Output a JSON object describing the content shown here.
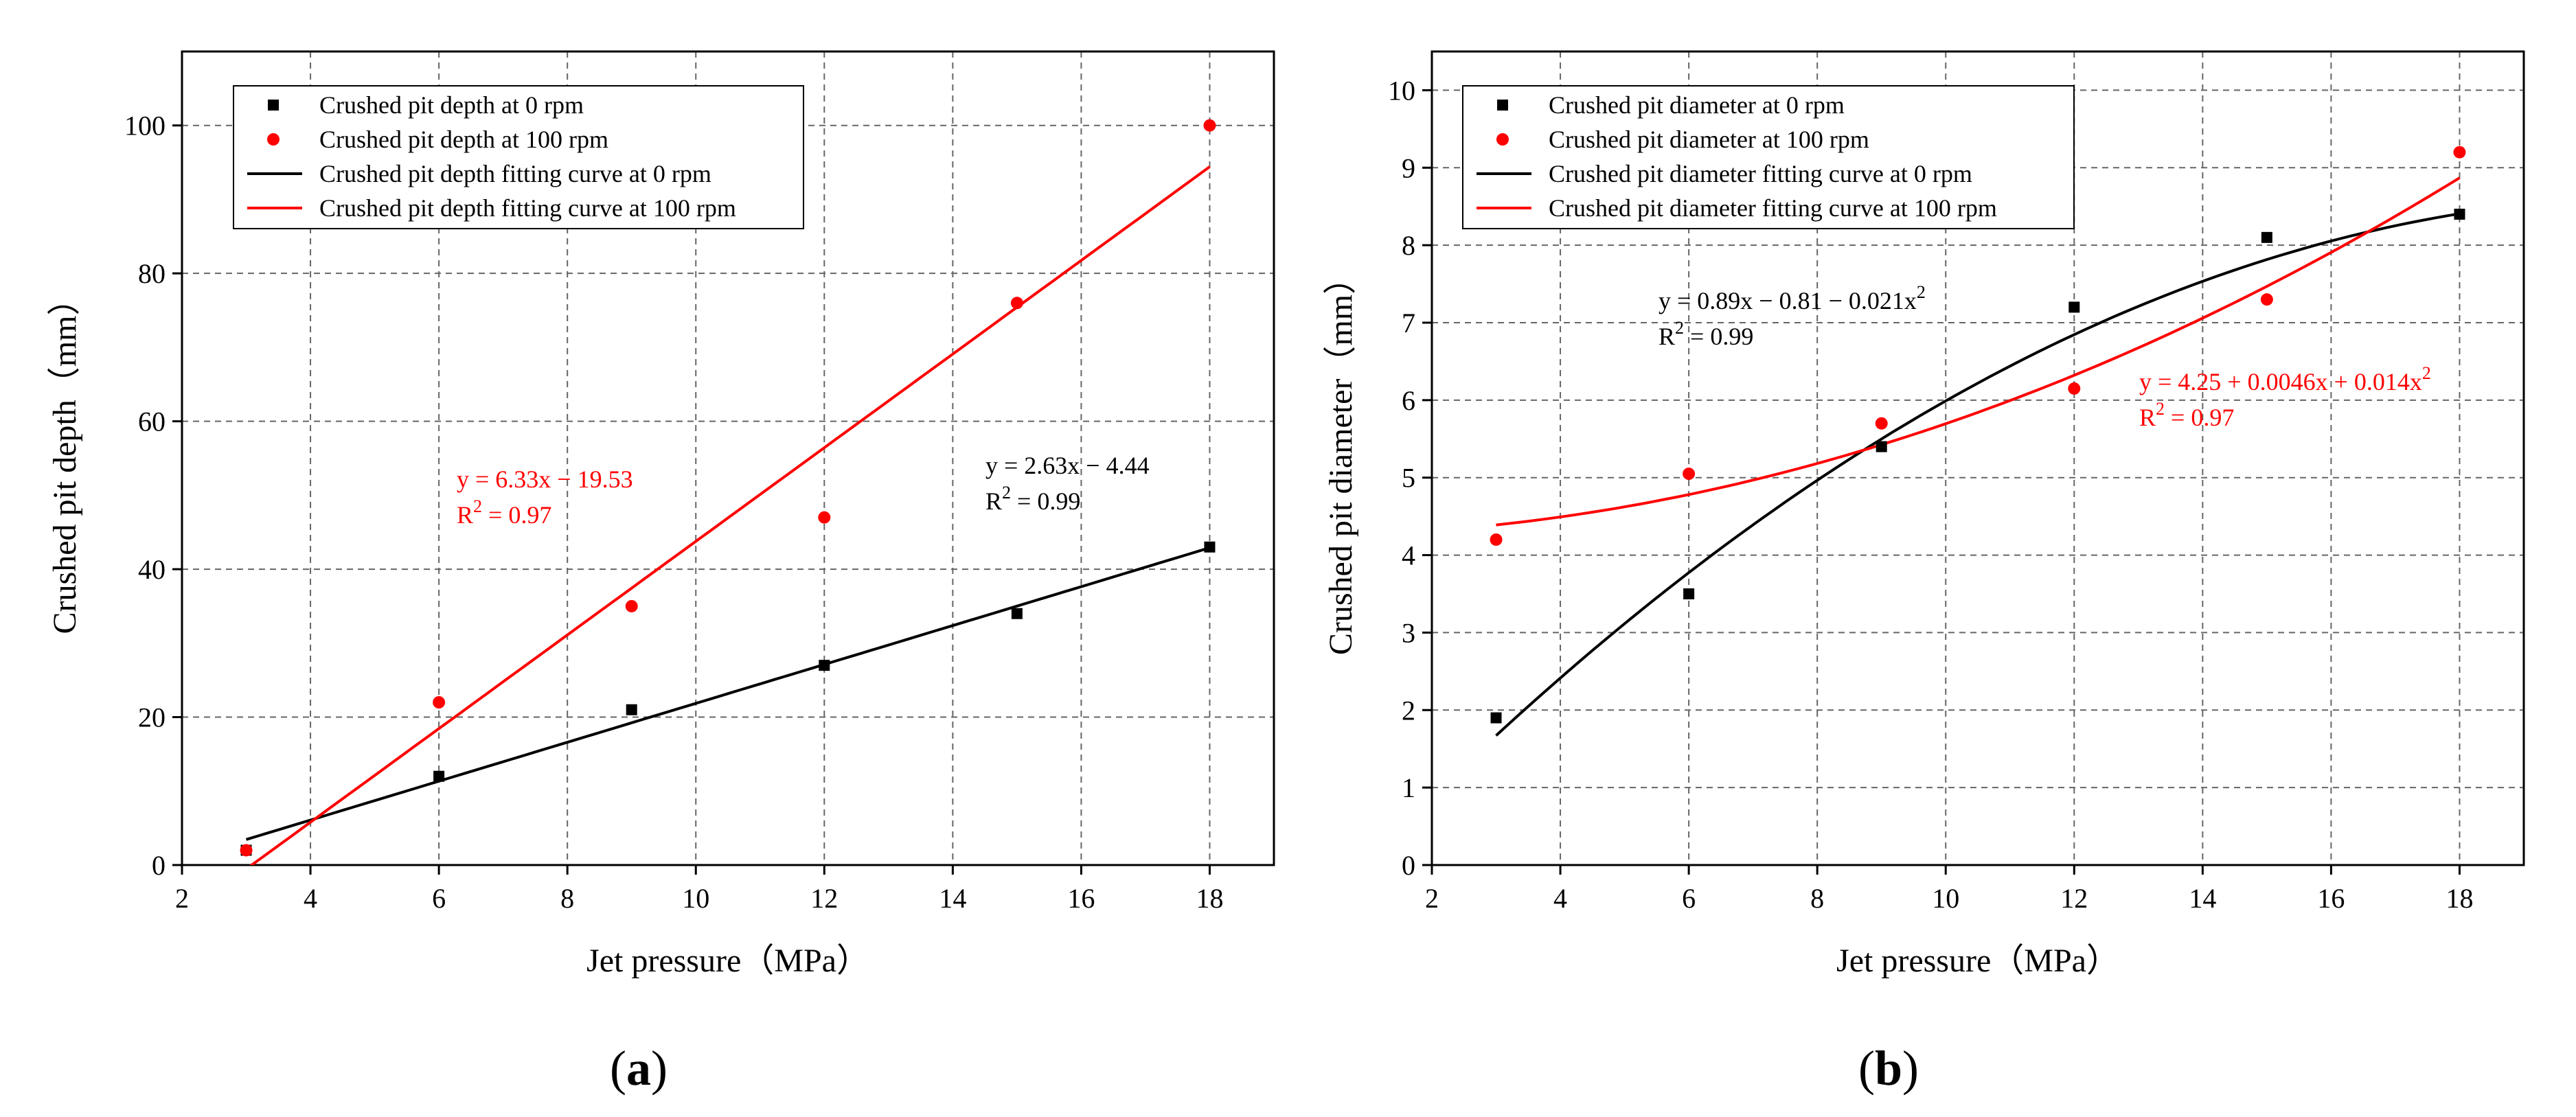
{
  "colors": {
    "black_series": "#000000",
    "red_series": "#ff0000",
    "grid": "#666666"
  },
  "chart_data": [
    {
      "type": "scatter",
      "panel_label": "a",
      "xlabel": "Jet pressure（MPa）",
      "ylabel": "Crushed pit depth（mm）",
      "xlim": [
        2,
        19
      ],
      "ylim": [
        0,
        110
      ],
      "xticks": [
        2,
        4,
        6,
        8,
        10,
        12,
        14,
        16,
        18
      ],
      "yticks": [
        0,
        20,
        40,
        60,
        80,
        100
      ],
      "grid": true,
      "legend_position": "top-left",
      "series": [
        {
          "name": "Crushed pit depth at 0 rpm",
          "marker": "square",
          "color": "#000000",
          "x": [
            3,
            6,
            9,
            12,
            15,
            18
          ],
          "y": [
            2,
            12,
            21,
            27,
            34,
            43
          ]
        },
        {
          "name": "Crushed pit depth at 100 rpm",
          "marker": "circle",
          "color": "#ff0000",
          "x": [
            3,
            6,
            9,
            12,
            15,
            18
          ],
          "y": [
            2,
            22,
            35,
            47,
            76,
            100
          ]
        }
      ],
      "fits": [
        {
          "name": "Crushed pit depth fitting curve at 0 rpm",
          "color": "#000000",
          "model": "linear",
          "coefficients": {
            "a": 2.63,
            "b": -4.44
          },
          "range": [
            3,
            18
          ]
        },
        {
          "name": "Crushed pit depth fitting curve at 100 rpm",
          "color": "#ff0000",
          "model": "linear",
          "coefficients": {
            "a": 6.33,
            "b": -19.53
          },
          "range": [
            3,
            18
          ]
        }
      ],
      "annotations": [
        {
          "color": "#ff0000",
          "equation": "y = 6.33x − 19.53",
          "r2_prefix": "R",
          "r2_sup": "2",
          "r2_value": " = 0.97"
        },
        {
          "color": "#000000",
          "equation": "y = 2.63x − 4.44",
          "r2_prefix": "R",
          "r2_sup": "2",
          "r2_value": " = 0.99"
        }
      ]
    },
    {
      "type": "scatter",
      "panel_label": "b",
      "xlabel": "Jet pressure（MPa）",
      "ylabel": "Crushed pit diameter（mm）",
      "xlim": [
        2,
        19
      ],
      "ylim": [
        0,
        10.5
      ],
      "xticks": [
        2,
        4,
        6,
        8,
        10,
        12,
        14,
        16,
        18
      ],
      "yticks": [
        0,
        1,
        2,
        3,
        4,
        5,
        6,
        7,
        8,
        9,
        10
      ],
      "grid": true,
      "legend_position": "top-left",
      "series": [
        {
          "name": "Crushed pit diameter at 0 rpm",
          "marker": "square",
          "color": "#000000",
          "x": [
            3,
            6,
            9,
            12,
            15,
            18
          ],
          "y": [
            1.9,
            3.5,
            5.4,
            7.2,
            8.1,
            8.4
          ]
        },
        {
          "name": "Crushed pit diameter at 100 rpm",
          "marker": "circle",
          "color": "#ff0000",
          "x": [
            3,
            6,
            9,
            12,
            15,
            18
          ],
          "y": [
            4.2,
            5.05,
            5.7,
            6.15,
            7.3,
            9.2
          ]
        }
      ],
      "fits": [
        {
          "name": "Crushed pit diameter fitting curve at 0 rpm",
          "color": "#000000",
          "model": "quadratic",
          "coefficients": {
            "c0": -0.81,
            "c1": 0.89,
            "c2": -0.021
          },
          "range": [
            3,
            18
          ]
        },
        {
          "name": "Crushed pit diameter fitting curve at 100 rpm",
          "color": "#ff0000",
          "model": "quadratic",
          "coefficients": {
            "c0": 4.25,
            "c1": 0.0046,
            "c2": 0.014
          },
          "range": [
            3,
            18
          ]
        }
      ],
      "annotations": [
        {
          "color": "#000000",
          "equation": "y = 0.89x − 0.81 − 0.021x",
          "eq_sup": "2",
          "r2_prefix": "R",
          "r2_sup": "2",
          "r2_value": " = 0.99"
        },
        {
          "color": "#ff0000",
          "equation": "y = 4.25 + 0.0046x + 0.014x",
          "eq_sup": "2",
          "r2_prefix": "R",
          "r2_sup": "2",
          "r2_value": " = 0.97"
        }
      ]
    }
  ]
}
